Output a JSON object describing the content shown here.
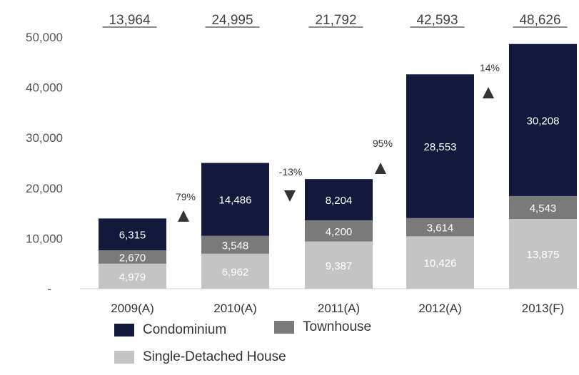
{
  "chart_data": {
    "type": "bar",
    "stacked": true,
    "categories": [
      "2009(A)",
      "2010(A)",
      "2011(A)",
      "2012(A)",
      "2013(F)"
    ],
    "totals": [
      "13,964",
      "24,995",
      "21,792",
      "42,593",
      "48,626"
    ],
    "series": [
      {
        "name": "Single-Detached House",
        "color": "#c4c4c4",
        "values": [
          4979,
          6962,
          9387,
          10426,
          13875
        ],
        "labels": [
          "4,979",
          "6,962",
          "9,387",
          "10,426",
          "13,875"
        ]
      },
      {
        "name": "Townhouse",
        "color": "#7a7a7a",
        "values": [
          2670,
          3548,
          4200,
          3614,
          4543
        ],
        "labels": [
          "2,670",
          "3,548",
          "4,200",
          "3,614",
          "4,543"
        ]
      },
      {
        "name": "Condominium",
        "color": "#13183d",
        "values": [
          6315,
          14486,
          8204,
          28553,
          30208
        ],
        "labels": [
          "6,315",
          "14,486",
          "8,204",
          "28,553",
          "30,208"
        ]
      }
    ],
    "y_ticks": [
      "-",
      "10,000",
      "20,000",
      "30,000",
      "40,000",
      "50,000"
    ],
    "ylim": [
      0,
      50000
    ],
    "changes": [
      {
        "label": "79%",
        "direction": "up"
      },
      {
        "label": "-13%",
        "direction": "down"
      },
      {
        "label": "95%",
        "direction": "up"
      },
      {
        "label": "14%",
        "direction": "up"
      }
    ],
    "legend": [
      "Condominium",
      "Townhouse",
      "Single-Detached House"
    ],
    "title": "",
    "xlabel": "",
    "ylabel": "",
    "grid": false
  }
}
